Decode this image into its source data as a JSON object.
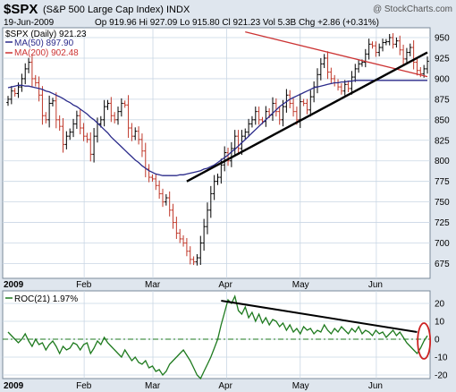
{
  "header": {
    "ticker": "$SPX",
    "name": "(S&P 500 Large Cap Index) INDX",
    "watermark": "@ StockCharts.com",
    "date": "19-Jun-2009",
    "quote": "Op 919.96  Hi 927.09  Lo 915.80  Cl 921.23  Vol 5.3B  Chg +2.86 (+0.31%)"
  },
  "legend": {
    "price": "$SPX (Daily) 921.23",
    "ma50": "MA(50) 897.90",
    "ma200": "MA(200) 902.48",
    "roc": "ROC(21) 1.97%"
  },
  "colors": {
    "background": "#dfe6ee",
    "panel": "#ffffff",
    "grid": "#c9d6e4",
    "up": "#000000",
    "down": "#c0392b",
    "ma50": "#2a2a8a",
    "ma200": "#cc3333",
    "roc": "#1e7a1e",
    "trendline": "#000000",
    "circle": "#cc2222"
  },
  "chart_data": [
    {
      "type": "ohlc",
      "title": "$SPX (Daily) 921.23",
      "y_axis_side": "right",
      "ylim": [
        657,
        962
      ],
      "yticks": [
        675,
        700,
        725,
        750,
        775,
        800,
        825,
        850,
        875,
        900,
        925,
        950
      ],
      "x_month_labels": [
        {
          "label": "2009",
          "date": "2009-01-02"
        },
        {
          "label": "Feb",
          "date": "2009-02-02"
        },
        {
          "label": "Mar",
          "date": "2009-03-02"
        },
        {
          "label": "Apr",
          "date": "2009-04-01"
        },
        {
          "label": "May",
          "date": "2009-05-01"
        },
        {
          "label": "Jun",
          "date": "2009-06-01"
        }
      ],
      "close": [
        875,
        885,
        882,
        890,
        900,
        912,
        920,
        900,
        895,
        880,
        855,
        850,
        870,
        873,
        850,
        842,
        820,
        830,
        835,
        845,
        855,
        840,
        830,
        826,
        808,
        830,
        845,
        850,
        866,
        870,
        855,
        850,
        860,
        870,
        868,
        840,
        830,
        836,
        826,
        812,
        790,
        780,
        778,
        770,
        760,
        750,
        755,
        740,
        725,
        712,
        705,
        700,
        690,
        680,
        677,
        682,
        700,
        720,
        740,
        760,
        775,
        780,
        795,
        810,
        800,
        815,
        830,
        815,
        830,
        835,
        845,
        850,
        860,
        850,
        848,
        860,
        856,
        870,
        860,
        850,
        866,
        880,
        870,
        860,
        850,
        872,
        870,
        862,
        878,
        890,
        905,
        918,
        925,
        908,
        900,
        895,
        890,
        885,
        893,
        888,
        902,
        912,
        918,
        920,
        930,
        942,
        940,
        932,
        938,
        944,
        945,
        950,
        942,
        946,
        935,
        924,
        932,
        938,
        920,
        910,
        906,
        912,
        921.23
      ],
      "ma50": [
        889,
        890,
        891,
        892,
        892,
        891,
        891,
        890,
        889,
        888,
        887,
        885,
        884,
        882,
        880,
        878,
        876,
        873,
        871,
        868,
        866,
        863,
        860,
        857,
        853,
        850,
        846,
        842,
        838,
        834,
        829,
        825,
        821,
        817,
        813,
        809,
        805,
        801,
        798,
        794,
        791,
        788,
        786,
        784,
        783,
        782,
        782,
        782,
        782,
        782,
        783,
        783,
        784,
        785,
        786,
        787,
        788,
        790,
        791,
        793,
        795,
        798,
        801,
        804,
        807,
        811,
        814,
        818,
        822,
        826,
        830,
        834,
        838,
        842,
        846,
        850,
        854,
        858,
        862,
        866,
        869,
        872,
        875,
        877,
        879,
        881,
        883,
        885,
        887,
        889,
        890,
        891,
        892,
        893,
        894,
        895,
        895,
        896,
        896,
        897,
        897,
        898,
        898,
        898,
        898,
        898,
        898,
        898,
        898,
        898,
        898,
        898,
        898,
        898,
        898,
        898,
        898,
        898,
        897.9,
        897.9,
        897.9,
        897.9,
        897.9
      ],
      "ma200_segment": {
        "from_index": 69,
        "from_value": 957,
        "to_index": 122,
        "to_value": 902.48
      },
      "trendline": {
        "from_index": 52,
        "from_value": 775,
        "to_index": 122,
        "to_value": 932
      }
    },
    {
      "type": "line",
      "title": "ROC(21) 1.97%",
      "y_axis_side": "right",
      "ylim": [
        -22,
        27
      ],
      "yticks": [
        -20,
        -10,
        0,
        10,
        20
      ],
      "zero_line": 0,
      "values": [
        4,
        2,
        0,
        -2,
        0,
        3,
        -1,
        -4,
        0,
        -3,
        -2,
        -6,
        -3,
        -1,
        -4,
        -8,
        -4,
        -6,
        -5,
        -2,
        -3,
        -6,
        -3,
        -2,
        -8,
        -5,
        -1,
        -3,
        1,
        -2,
        -4,
        -6,
        -8,
        -10,
        -6,
        -9,
        -12,
        -10,
        -13,
        -14,
        -12,
        -16,
        -15,
        -18,
        -17,
        -20,
        -18,
        -14,
        -12,
        -10,
        -8,
        -6,
        -9,
        -12,
        -16,
        -20,
        -22,
        -18,
        -14,
        -10,
        -5,
        0,
        8,
        15,
        22,
        20,
        24,
        16,
        14,
        18,
        12,
        15,
        10,
        14,
        9,
        12,
        8,
        11,
        10,
        7,
        9,
        5,
        8,
        4,
        6,
        3,
        7,
        5,
        6,
        3,
        5,
        4,
        8,
        5,
        3,
        6,
        4,
        7,
        5,
        3,
        6,
        4,
        7,
        3,
        5,
        4,
        2,
        5,
        3,
        4,
        1,
        3,
        5,
        2,
        4,
        1,
        -2,
        -4,
        -6,
        -8,
        -5,
        -1,
        1.97
      ],
      "trendline": {
        "from_index": 62,
        "from_value": 21.5,
        "to_index": 119,
        "to_value": 4
      },
      "highlight_circle_index": 121
    }
  ]
}
